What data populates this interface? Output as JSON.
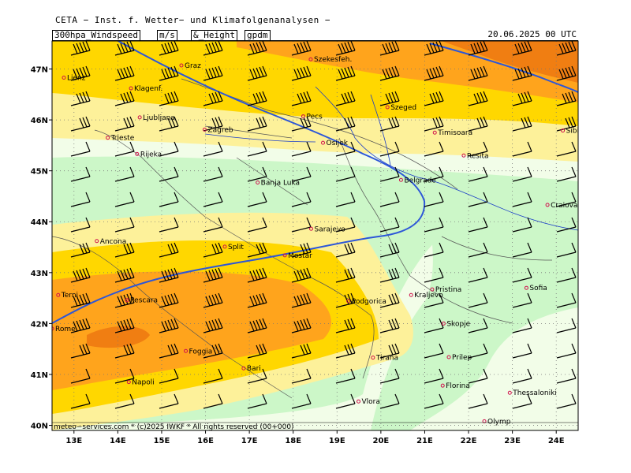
{
  "header": {
    "title": "CETA − Inst. f. Wetter− und Klimafolgenanalysen −",
    "param_label": "300hpa_Windspeed",
    "unit1": "m/s",
    "amp": "&_Height",
    "unit2": "gpdm",
    "datetime": "20.06.2025 00 UTC"
  },
  "map": {
    "lon_range": [
      12.5,
      24.5
    ],
    "lat_range": [
      39.9,
      47.55
    ],
    "lon_ticks": [
      {
        "value": 13,
        "label": "13E"
      },
      {
        "value": 14,
        "label": "14E"
      },
      {
        "value": 15,
        "label": "15E"
      },
      {
        "value": 16,
        "label": "16E"
      },
      {
        "value": 17,
        "label": "17E"
      },
      {
        "value": 18,
        "label": "18E"
      },
      {
        "value": 19,
        "label": "19E"
      },
      {
        "value": 20,
        "label": "20E"
      },
      {
        "value": 21,
        "label": "21E"
      },
      {
        "value": 22,
        "label": "22E"
      },
      {
        "value": 23,
        "label": "23E"
      },
      {
        "value": 24,
        "label": "24E"
      }
    ],
    "lat_ticks": [
      {
        "value": 40,
        "label": "40N"
      },
      {
        "value": 41,
        "label": "41N"
      },
      {
        "value": 42,
        "label": "42N"
      },
      {
        "value": 43,
        "label": "43N"
      },
      {
        "value": 44,
        "label": "44N"
      },
      {
        "value": 45,
        "label": "45N"
      },
      {
        "value": 46,
        "label": "46N"
      },
      {
        "value": 47,
        "label": "47N"
      }
    ],
    "cities": [
      {
        "name": "Graz",
        "lon": 15.45,
        "lat": 47.07
      },
      {
        "name": "Szekesfeh.",
        "lon": 18.4,
        "lat": 47.19
      },
      {
        "name": "Lienz",
        "lon": 12.77,
        "lat": 46.83
      },
      {
        "name": "Klagenf.",
        "lon": 14.3,
        "lat": 46.62
      },
      {
        "name": "Szeged",
        "lon": 20.15,
        "lat": 46.25
      },
      {
        "name": "Ljubljana",
        "lon": 14.5,
        "lat": 46.05
      },
      {
        "name": "Pecs",
        "lon": 18.23,
        "lat": 46.07
      },
      {
        "name": "Zagreb",
        "lon": 15.98,
        "lat": 45.81
      },
      {
        "name": "Timisoara",
        "lon": 21.23,
        "lat": 45.75
      },
      {
        "name": "Sibiu",
        "lon": 24.15,
        "lat": 45.79
      },
      {
        "name": "Trieste",
        "lon": 13.77,
        "lat": 45.65
      },
      {
        "name": "Osijek",
        "lon": 18.68,
        "lat": 45.55
      },
      {
        "name": "Rijeka",
        "lon": 14.44,
        "lat": 45.33
      },
      {
        "name": "Resita",
        "lon": 21.89,
        "lat": 45.3
      },
      {
        "name": "Banja Luka",
        "lon": 17.19,
        "lat": 44.77
      },
      {
        "name": "Belgrade",
        "lon": 20.46,
        "lat": 44.82
      },
      {
        "name": "Craiova",
        "lon": 23.8,
        "lat": 44.33
      },
      {
        "name": "Sarajevo",
        "lon": 18.41,
        "lat": 43.86
      },
      {
        "name": "Ancona",
        "lon": 13.52,
        "lat": 43.62
      },
      {
        "name": "Split",
        "lon": 16.44,
        "lat": 43.51
      },
      {
        "name": "Mostar",
        "lon": 17.81,
        "lat": 43.34
      },
      {
        "name": "Terni",
        "lon": 12.64,
        "lat": 42.56
      },
      {
        "name": "Pristina",
        "lon": 21.17,
        "lat": 42.67
      },
      {
        "name": "Sofia",
        "lon": 23.32,
        "lat": 42.7
      },
      {
        "name": "Kraljevo",
        "lon": 20.69,
        "lat": 42.56
      },
      {
        "name": "Pescara",
        "lon": 14.21,
        "lat": 42.46
      },
      {
        "name": "Podgorica",
        "lon": 19.26,
        "lat": 42.44
      },
      {
        "name": "Skopje",
        "lon": 21.43,
        "lat": 42.0
      },
      {
        "name": "Rome",
        "lon": 12.5,
        "lat": 41.9
      },
      {
        "name": "Foggia",
        "lon": 15.55,
        "lat": 41.46
      },
      {
        "name": "Tirana",
        "lon": 19.82,
        "lat": 41.33
      },
      {
        "name": "Prilep",
        "lon": 21.55,
        "lat": 41.34
      },
      {
        "name": "Bari",
        "lon": 16.87,
        "lat": 41.12
      },
      {
        "name": "Napoli",
        "lon": 14.25,
        "lat": 40.85
      },
      {
        "name": "Florina",
        "lon": 21.41,
        "lat": 40.78
      },
      {
        "name": "Thessaloniki",
        "lon": 22.94,
        "lat": 40.64
      },
      {
        "name": "Vlora",
        "lon": 19.49,
        "lat": 40.47
      },
      {
        "name": "Olymp",
        "lon": 22.36,
        "lat": 40.08
      }
    ],
    "wind_legend_colors": {
      "very_light": "#f2fde8",
      "light": "#ccf7c8",
      "pale_yellow": "#fdf19a",
      "yellow": "#ffd700",
      "orange": "#ffa41c",
      "dark_orange": "#f07e12"
    },
    "isohypse_color": "#2c56d8",
    "river_color": "#1a3cc8",
    "grid_color": "#888888"
  },
  "footer": {
    "copyright": "meteo−services.com * (c)2025 IWKF * All rights reserved (00+000)"
  }
}
